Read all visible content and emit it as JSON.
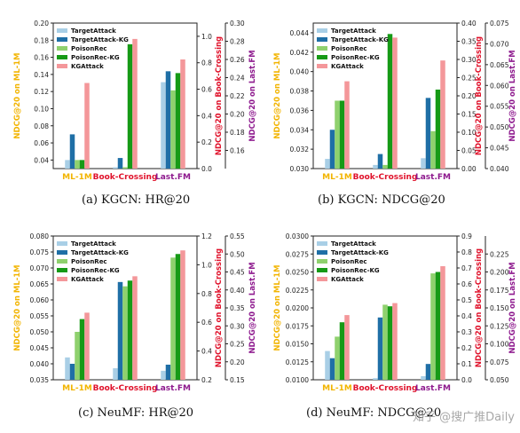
{
  "colors": {
    "TargetAttack": "#a9cfe6",
    "TargetAttack-KG": "#1f6fa6",
    "PoisonRec": "#8fd16e",
    "PoisonRec-KG": "#169a16",
    "KGAttack": "#f4979a",
    "axis_left": "#f2b400",
    "axis_mid": "#e0122b",
    "axis_right": "#8e1a8e"
  },
  "watermark": "知乎 @搜广推Daily",
  "chart_data": [
    {
      "type": "bar",
      "caption": "(a)  KGCN: HR@20",
      "categories": [
        "ML-1M",
        "Book-Crossing",
        "Last.FM"
      ],
      "category_colors": [
        "#f2b400",
        "#e0122b",
        "#8e1a8e"
      ],
      "axis_labels": [
        "NDCG@20 on ML-1M",
        "NDCG@20 on Book-Crossing",
        "NDCG@20 on Last.FM"
      ],
      "axis_ranges": [
        [
          0.03,
          0.2
        ],
        [
          0.0,
          1.1
        ],
        [
          0.14,
          0.3
        ]
      ],
      "ticks": [
        [
          "0.04",
          "0.06",
          "0.08",
          "0.10",
          "0.12",
          "0.14",
          "0.16",
          "0.18",
          "0.20"
        ],
        [
          "0.0",
          "0.2",
          "0.4",
          "0.6",
          "0.8",
          "1.0"
        ],
        [
          "0.16",
          "0.18",
          "0.20",
          "0.22",
          "0.24",
          "0.26",
          "0.28",
          "0.30"
        ]
      ],
      "legend": {
        "placement": "top-left",
        "entries": [
          "TargetAttack",
          "TargetAttack-KG",
          "PoisonRec",
          "PoisonRec-KG",
          "KGAttack"
        ]
      },
      "series": [
        {
          "name": "TargetAttack",
          "values": [
            0.04,
            0.01,
            0.235
          ]
        },
        {
          "name": "TargetAttack-KG",
          "values": [
            0.07,
            0.08,
            0.247
          ]
        },
        {
          "name": "PoisonRec",
          "values": [
            0.04,
            0.01,
            0.226
          ]
        },
        {
          "name": "PoisonRec-KG",
          "values": [
            0.04,
            0.94,
            0.245
          ]
        },
        {
          "name": "KGAttack",
          "values": [
            0.13,
            0.98,
            0.26
          ]
        }
      ]
    },
    {
      "type": "bar",
      "caption": "(b)  KGCN: NDCG@20",
      "categories": [
        "ML-1M",
        "Book-Crossing",
        "Last.FM"
      ],
      "category_colors": [
        "#f2b400",
        "#e0122b",
        "#8e1a8e"
      ],
      "axis_labels": [
        "NDCG@20 on ML-1M",
        "NDCG@20 on Book-Crossing",
        "NDCG@20 on Last.FM"
      ],
      "axis_ranges": [
        [
          0.03,
          0.045
        ],
        [
          0.0,
          0.4
        ],
        [
          0.04,
          0.075
        ]
      ],
      "ticks": [
        [
          "0.030",
          "0.032",
          "0.034",
          "0.036",
          "0.038",
          "0.040",
          "0.042",
          "0.044"
        ],
        [
          "0.00",
          "0.05",
          "0.10",
          "0.15",
          "0.20",
          "0.25",
          "0.30",
          "0.35",
          "0.40"
        ],
        [
          "0.040",
          "0.045",
          "0.050",
          "0.055",
          "0.060",
          "0.065",
          "0.070",
          "0.075"
        ]
      ],
      "legend": {
        "placement": "top-left",
        "entries": [
          "TargetAttack",
          "TargetAttack-KG",
          "PoisonRec",
          "PoisonRec-KG",
          "KGAttack"
        ]
      },
      "series": [
        {
          "name": "TargetAttack",
          "values": [
            0.031,
            0.01,
            0.0425
          ]
        },
        {
          "name": "TargetAttack-KG",
          "values": [
            0.034,
            0.04,
            0.057
          ]
        },
        {
          "name": "PoisonRec",
          "values": [
            0.037,
            0.01,
            0.049
          ]
        },
        {
          "name": "PoisonRec-KG",
          "values": [
            0.037,
            0.37,
            0.059
          ]
        },
        {
          "name": "KGAttack",
          "values": [
            0.039,
            0.36,
            0.066
          ]
        }
      ]
    },
    {
      "type": "bar",
      "caption": "(c)  NeuMF: HR@20",
      "categories": [
        "ML-1M",
        "Book-Crossing",
        "Last.FM"
      ],
      "category_colors": [
        "#f2b400",
        "#e0122b",
        "#8e1a8e"
      ],
      "axis_labels": [
        "NDCG@20 on ML-1M",
        "NDCG@20 on Book-Crossing",
        "NDCG@20 on Last.FM"
      ],
      "axis_ranges": [
        [
          0.035,
          0.08
        ],
        [
          0.2,
          1.2
        ],
        [
          0.15,
          0.55
        ]
      ],
      "ticks": [
        [
          "0.035",
          "0.040",
          "0.045",
          "0.050",
          "0.055",
          "0.060",
          "0.065",
          "0.070",
          "0.075",
          "0.080"
        ],
        [
          "0.2",
          "0.4",
          "0.6",
          "0.8",
          "1.0",
          "1.2"
        ],
        [
          "0.15",
          "0.20",
          "0.25",
          "0.30",
          "0.35",
          "0.40",
          "0.45",
          "0.50",
          "0.55"
        ]
      ],
      "legend": {
        "placement": "top-left",
        "entries": [
          "TargetAttack",
          "TargetAttack-KG",
          "PoisonRec",
          "PoisonRec-KG",
          "KGAttack"
        ]
      },
      "series": [
        {
          "name": "TargetAttack",
          "values": [
            0.042,
            0.28,
            0.175
          ]
        },
        {
          "name": "TargetAttack-KG",
          "values": [
            0.04,
            0.88,
            0.192
          ]
        },
        {
          "name": "PoisonRec",
          "values": [
            0.05,
            0.85,
            0.49
          ]
        },
        {
          "name": "PoisonRec-KG",
          "values": [
            0.054,
            0.89,
            0.5
          ]
        },
        {
          "name": "KGAttack",
          "values": [
            0.056,
            0.92,
            0.51
          ]
        }
      ]
    },
    {
      "type": "bar",
      "caption": "(d)  NeuMF: NDCG@20",
      "categories": [
        "ML-1M",
        "Book-Crossing",
        "Last.FM"
      ],
      "category_colors": [
        "#f2b400",
        "#e0122b",
        "#8e1a8e"
      ],
      "axis_labels": [
        "NDCG@20 on ML-1M",
        "NDCG@20 on Book-Crossing",
        "NDCG@20 on Last.FM"
      ],
      "axis_ranges": [
        [
          0.01,
          0.03
        ],
        [
          0.0,
          0.9
        ],
        [
          0.05,
          0.25
        ]
      ],
      "ticks": [
        [
          "0.0100",
          "0.0125",
          "0.0150",
          "0.0175",
          "0.0200",
          "0.0225",
          "0.0250",
          "0.0275",
          "0.0300"
        ],
        [
          "0.0",
          "0.1",
          "0.2",
          "0.3",
          "0.4",
          "0.5",
          "0.6",
          "0.7",
          "0.8",
          "0.9"
        ],
        [
          "0.050",
          "0.075",
          "0.100",
          "0.125",
          "0.150",
          "0.175",
          "0.200",
          "0.225"
        ]
      ],
      "legend": {
        "placement": "top-left",
        "entries": [
          "TargetAttack",
          "TargetAttack-KG",
          "PoisonRec",
          "PoisonRec-KG",
          "KGAttack"
        ]
      },
      "series": [
        {
          "name": "TargetAttack",
          "values": [
            0.014,
            0.01,
            0.055
          ]
        },
        {
          "name": "TargetAttack-KG",
          "values": [
            0.013,
            0.39,
            0.072
          ]
        },
        {
          "name": "PoisonRec",
          "values": [
            0.016,
            0.47,
            0.198
          ]
        },
        {
          "name": "PoisonRec-KG",
          "values": [
            0.018,
            0.46,
            0.2
          ]
        },
        {
          "name": "KGAttack",
          "values": [
            0.019,
            0.48,
            0.208
          ]
        }
      ]
    }
  ]
}
